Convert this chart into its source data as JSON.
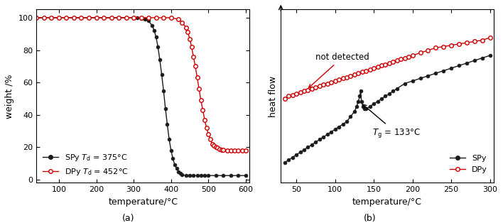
{
  "panel_a": {
    "title": "(a)",
    "xlabel": "temperature/°C",
    "ylabel": "weight /%",
    "xlim": [
      40,
      610
    ],
    "ylim": [
      -2,
      105
    ],
    "xticks": [
      100,
      200,
      300,
      400,
      500,
      600
    ],
    "yticks": [
      0,
      20,
      40,
      60,
      80,
      100
    ],
    "spy_color": "#1a1a1a",
    "dpy_color": "#cc0000",
    "spy_x": [
      40,
      60,
      80,
      100,
      120,
      140,
      160,
      180,
      200,
      220,
      240,
      260,
      280,
      300,
      310,
      320,
      330,
      340,
      350,
      355,
      360,
      365,
      370,
      375,
      380,
      385,
      390,
      395,
      400,
      405,
      410,
      415,
      420,
      425,
      430,
      440,
      450,
      460,
      470,
      480,
      490,
      500,
      520,
      540,
      560,
      580,
      600
    ],
    "spy_y": [
      100,
      100,
      100,
      100,
      100,
      100,
      100,
      100,
      100,
      100,
      100,
      100,
      100,
      100,
      100,
      99.5,
      99,
      98,
      95,
      92,
      88,
      82,
      74,
      65,
      55,
      44,
      34,
      25,
      18,
      13,
      9,
      7,
      5,
      4,
      3,
      2.5,
      2.5,
      2.5,
      2.5,
      2.5,
      2.5,
      2.5,
      2.5,
      2.5,
      2.5,
      2.5,
      2.5
    ],
    "dpy_x": [
      40,
      60,
      80,
      100,
      120,
      140,
      160,
      180,
      200,
      220,
      240,
      260,
      280,
      300,
      320,
      340,
      360,
      380,
      400,
      420,
      430,
      440,
      445,
      450,
      455,
      460,
      465,
      470,
      475,
      480,
      485,
      490,
      495,
      500,
      505,
      510,
      515,
      520,
      525,
      530,
      535,
      540,
      550,
      560,
      570,
      580,
      590,
      600
    ],
    "dpy_y": [
      100,
      100,
      100,
      100,
      100,
      100,
      100,
      100,
      100,
      100,
      100,
      100,
      100,
      100,
      100,
      100,
      100,
      100,
      100,
      99,
      97,
      94,
      91,
      87,
      82,
      76,
      70,
      63,
      56,
      49,
      43,
      37,
      32,
      28,
      25,
      22,
      21,
      20,
      19.5,
      19,
      18.5,
      18.5,
      18,
      18,
      18,
      18,
      18,
      18
    ]
  },
  "panel_b": {
    "title": "(b)",
    "xlabel": "temperature/°C",
    "xlim": [
      30,
      305
    ],
    "xticks": [
      50,
      100,
      150,
      200,
      250,
      300
    ],
    "spy_color": "#1a1a1a",
    "dpy_color": "#cc0000",
    "spy_x": [
      35,
      40,
      45,
      50,
      55,
      60,
      65,
      70,
      75,
      80,
      85,
      90,
      95,
      100,
      105,
      110,
      115,
      120,
      125,
      128,
      130,
      132,
      133,
      134,
      136,
      138,
      140,
      145,
      150,
      155,
      160,
      165,
      170,
      175,
      180,
      190,
      200,
      210,
      220,
      230,
      240,
      250,
      260,
      270,
      280,
      290,
      300
    ],
    "spy_y": [
      0.3,
      0.31,
      0.32,
      0.33,
      0.34,
      0.35,
      0.36,
      0.37,
      0.38,
      0.39,
      0.4,
      0.41,
      0.42,
      0.43,
      0.44,
      0.45,
      0.46,
      0.48,
      0.5,
      0.52,
      0.54,
      0.56,
      0.58,
      0.54,
      0.52,
      0.51,
      0.51,
      0.52,
      0.53,
      0.54,
      0.55,
      0.56,
      0.57,
      0.58,
      0.59,
      0.61,
      0.62,
      0.63,
      0.64,
      0.65,
      0.66,
      0.67,
      0.68,
      0.69,
      0.7,
      0.71,
      0.72
    ],
    "dpy_x": [
      35,
      40,
      45,
      50,
      55,
      60,
      65,
      70,
      75,
      80,
      85,
      90,
      95,
      100,
      105,
      110,
      115,
      120,
      125,
      130,
      135,
      140,
      145,
      150,
      155,
      160,
      165,
      170,
      175,
      180,
      185,
      190,
      195,
      200,
      210,
      220,
      230,
      240,
      250,
      260,
      270,
      280,
      290,
      300
    ],
    "dpy_y": [
      0.55,
      0.56,
      0.565,
      0.57,
      0.575,
      0.58,
      0.585,
      0.59,
      0.595,
      0.6,
      0.605,
      0.61,
      0.615,
      0.62,
      0.625,
      0.63,
      0.635,
      0.64,
      0.645,
      0.65,
      0.655,
      0.66,
      0.665,
      0.67,
      0.675,
      0.68,
      0.685,
      0.69,
      0.695,
      0.7,
      0.705,
      0.71,
      0.715,
      0.72,
      0.73,
      0.74,
      0.75,
      0.755,
      0.76,
      0.765,
      0.77,
      0.775,
      0.78,
      0.79
    ]
  }
}
